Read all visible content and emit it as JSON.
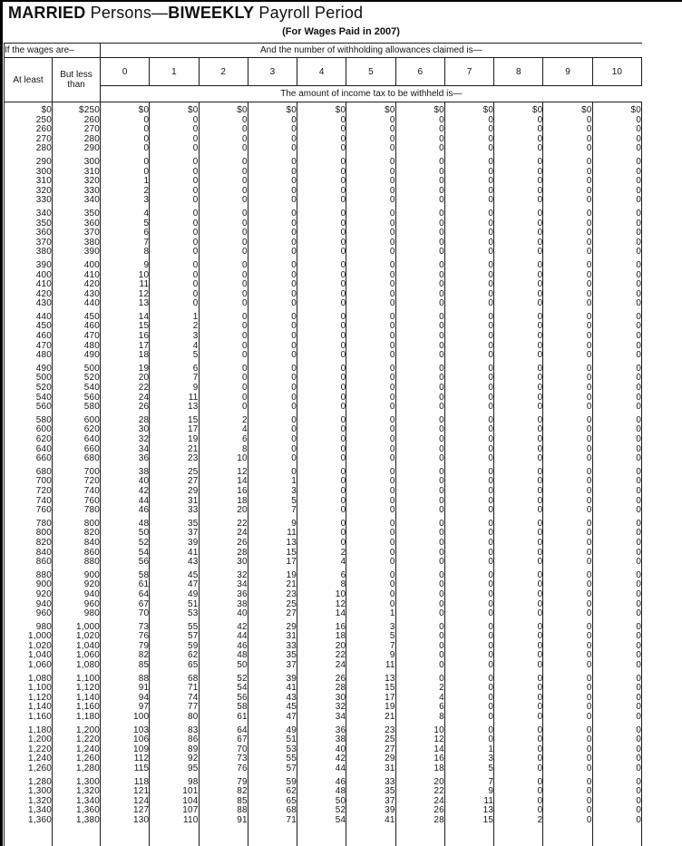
{
  "title": {
    "married": "MARRIED",
    "persons": " Persons—",
    "biweekly": "BIWEEKLY",
    "payroll": " Payroll Period"
  },
  "subtitle": "(For Wages Paid in 2007)",
  "colors": {
    "border": "#1c1c1c",
    "text": "#161616",
    "scan_edge": "#000000",
    "background": "#fefefe"
  },
  "table": {
    "wages_header": "If the wages are–",
    "allowances_header": "And the number of withholding allowances claimed is—",
    "col_at_least": "At least",
    "col_but_less": "But less than",
    "allowance_columns": [
      "0",
      "1",
      "2",
      "3",
      "4",
      "5",
      "6",
      "7",
      "8",
      "9",
      "10"
    ],
    "amount_header": "The amount of income tax to be withheld is—",
    "groups": [
      [
        [
          "$0",
          "$250",
          "$0",
          "$0",
          "$0",
          "$0",
          "$0",
          "$0",
          "$0",
          "$0",
          "$0",
          "$0",
          "$0"
        ],
        [
          "250",
          "260",
          "0",
          "0",
          "0",
          "0",
          "0",
          "0",
          "0",
          "0",
          "0",
          "0",
          "0"
        ],
        [
          "260",
          "270",
          "0",
          "0",
          "0",
          "0",
          "0",
          "0",
          "0",
          "0",
          "0",
          "0",
          "0"
        ],
        [
          "270",
          "280",
          "0",
          "0",
          "0",
          "0",
          "0",
          "0",
          "0",
          "0",
          "0",
          "0",
          "0"
        ],
        [
          "280",
          "290",
          "0",
          "0",
          "0",
          "0",
          "0",
          "0",
          "0",
          "0",
          "0",
          "0",
          "0"
        ]
      ],
      [
        [
          "290",
          "300",
          "0",
          "0",
          "0",
          "0",
          "0",
          "0",
          "0",
          "0",
          "0",
          "0",
          "0"
        ],
        [
          "300",
          "310",
          "0",
          "0",
          "0",
          "0",
          "0",
          "0",
          "0",
          "0",
          "0",
          "0",
          "0"
        ],
        [
          "310",
          "320",
          "1",
          "0",
          "0",
          "0",
          "0",
          "0",
          "0",
          "0",
          "0",
          "0",
          "0"
        ],
        [
          "320",
          "330",
          "2",
          "0",
          "0",
          "0",
          "0",
          "0",
          "0",
          "0",
          "0",
          "0",
          "0"
        ],
        [
          "330",
          "340",
          "3",
          "0",
          "0",
          "0",
          "0",
          "0",
          "0",
          "0",
          "0",
          "0",
          "0"
        ]
      ],
      [
        [
          "340",
          "350",
          "4",
          "0",
          "0",
          "0",
          "0",
          "0",
          "0",
          "0",
          "0",
          "0",
          "0"
        ],
        [
          "350",
          "360",
          "5",
          "0",
          "0",
          "0",
          "0",
          "0",
          "0",
          "0",
          "0",
          "0",
          "0"
        ],
        [
          "360",
          "370",
          "6",
          "0",
          "0",
          "0",
          "0",
          "0",
          "0",
          "0",
          "0",
          "0",
          "0"
        ],
        [
          "370",
          "380",
          "7",
          "0",
          "0",
          "0",
          "0",
          "0",
          "0",
          "0",
          "0",
          "0",
          "0"
        ],
        [
          "380",
          "390",
          "8",
          "0",
          "0",
          "0",
          "0",
          "0",
          "0",
          "0",
          "0",
          "0",
          "0"
        ]
      ],
      [
        [
          "390",
          "400",
          "9",
          "0",
          "0",
          "0",
          "0",
          "0",
          "0",
          "0",
          "0",
          "0",
          "0"
        ],
        [
          "400",
          "410",
          "10",
          "0",
          "0",
          "0",
          "0",
          "0",
          "0",
          "0",
          "0",
          "0",
          "0"
        ],
        [
          "410",
          "420",
          "11",
          "0",
          "0",
          "0",
          "0",
          "0",
          "0",
          "0",
          "0",
          "0",
          "0"
        ],
        [
          "420",
          "430",
          "12",
          "0",
          "0",
          "0",
          "0",
          "0",
          "0",
          "0",
          "0",
          "0",
          "0"
        ],
        [
          "430",
          "440",
          "13",
          "0",
          "0",
          "0",
          "0",
          "0",
          "0",
          "0",
          "0",
          "0",
          "0"
        ]
      ],
      [
        [
          "440",
          "450",
          "14",
          "1",
          "0",
          "0",
          "0",
          "0",
          "0",
          "0",
          "0",
          "0",
          "0"
        ],
        [
          "450",
          "460",
          "15",
          "2",
          "0",
          "0",
          "0",
          "0",
          "0",
          "0",
          "0",
          "0",
          "0"
        ],
        [
          "460",
          "470",
          "16",
          "3",
          "0",
          "0",
          "0",
          "0",
          "0",
          "0",
          "0",
          "0",
          "0"
        ],
        [
          "470",
          "480",
          "17",
          "4",
          "0",
          "0",
          "0",
          "0",
          "0",
          "0",
          "0",
          "0",
          "0"
        ],
        [
          "480",
          "490",
          "18",
          "5",
          "0",
          "0",
          "0",
          "0",
          "0",
          "0",
          "0",
          "0",
          "0"
        ]
      ],
      [
        [
          "490",
          "500",
          "19",
          "6",
          "0",
          "0",
          "0",
          "0",
          "0",
          "0",
          "0",
          "0",
          "0"
        ],
        [
          "500",
          "520",
          "20",
          "7",
          "0",
          "0",
          "0",
          "0",
          "0",
          "0",
          "0",
          "0",
          "0"
        ],
        [
          "520",
          "540",
          "22",
          "9",
          "0",
          "0",
          "0",
          "0",
          "0",
          "0",
          "0",
          "0",
          "0"
        ],
        [
          "540",
          "560",
          "24",
          "11",
          "0",
          "0",
          "0",
          "0",
          "0",
          "0",
          "0",
          "0",
          "0"
        ],
        [
          "560",
          "580",
          "26",
          "13",
          "0",
          "0",
          "0",
          "0",
          "0",
          "0",
          "0",
          "0",
          "0"
        ]
      ],
      [
        [
          "580",
          "600",
          "28",
          "15",
          "2",
          "0",
          "0",
          "0",
          "0",
          "0",
          "0",
          "0",
          "0"
        ],
        [
          "600",
          "620",
          "30",
          "17",
          "4",
          "0",
          "0",
          "0",
          "0",
          "0",
          "0",
          "0",
          "0"
        ],
        [
          "620",
          "640",
          "32",
          "19",
          "6",
          "0",
          "0",
          "0",
          "0",
          "0",
          "0",
          "0",
          "0"
        ],
        [
          "640",
          "660",
          "34",
          "21",
          "8",
          "0",
          "0",
          "0",
          "0",
          "0",
          "0",
          "0",
          "0"
        ],
        [
          "660",
          "680",
          "36",
          "23",
          "10",
          "0",
          "0",
          "0",
          "0",
          "0",
          "0",
          "0",
          "0"
        ]
      ],
      [
        [
          "680",
          "700",
          "38",
          "25",
          "12",
          "0",
          "0",
          "0",
          "0",
          "0",
          "0",
          "0",
          "0"
        ],
        [
          "700",
          "720",
          "40",
          "27",
          "14",
          "1",
          "0",
          "0",
          "0",
          "0",
          "0",
          "0",
          "0"
        ],
        [
          "720",
          "740",
          "42",
          "29",
          "16",
          "3",
          "0",
          "0",
          "0",
          "0",
          "0",
          "0",
          "0"
        ],
        [
          "740",
          "760",
          "44",
          "31",
          "18",
          "5",
          "0",
          "0",
          "0",
          "0",
          "0",
          "0",
          "0"
        ],
        [
          "760",
          "780",
          "46",
          "33",
          "20",
          "7",
          "0",
          "0",
          "0",
          "0",
          "0",
          "0",
          "0"
        ]
      ],
      [
        [
          "780",
          "800",
          "48",
          "35",
          "22",
          "9",
          "0",
          "0",
          "0",
          "0",
          "0",
          "0",
          "0"
        ],
        [
          "800",
          "820",
          "50",
          "37",
          "24",
          "11",
          "0",
          "0",
          "0",
          "0",
          "0",
          "0",
          "0"
        ],
        [
          "820",
          "840",
          "52",
          "39",
          "26",
          "13",
          "0",
          "0",
          "0",
          "0",
          "0",
          "0",
          "0"
        ],
        [
          "840",
          "860",
          "54",
          "41",
          "28",
          "15",
          "2",
          "0",
          "0",
          "0",
          "0",
          "0",
          "0"
        ],
        [
          "860",
          "880",
          "56",
          "43",
          "30",
          "17",
          "4",
          "0",
          "0",
          "0",
          "0",
          "0",
          "0"
        ]
      ],
      [
        [
          "880",
          "900",
          "58",
          "45",
          "32",
          "19",
          "6",
          "0",
          "0",
          "0",
          "0",
          "0",
          "0"
        ],
        [
          "900",
          "920",
          "61",
          "47",
          "34",
          "21",
          "8",
          "0",
          "0",
          "0",
          "0",
          "0",
          "0"
        ],
        [
          "920",
          "940",
          "64",
          "49",
          "36",
          "23",
          "10",
          "0",
          "0",
          "0",
          "0",
          "0",
          "0"
        ],
        [
          "940",
          "960",
          "67",
          "51",
          "38",
          "25",
          "12",
          "0",
          "0",
          "0",
          "0",
          "0",
          "0"
        ],
        [
          "960",
          "980",
          "70",
          "53",
          "40",
          "27",
          "14",
          "1",
          "0",
          "0",
          "0",
          "0",
          "0"
        ]
      ],
      [
        [
          "980",
          "1,000",
          "73",
          "55",
          "42",
          "29",
          "16",
          "3",
          "0",
          "0",
          "0",
          "0",
          "0"
        ],
        [
          "1,000",
          "1,020",
          "76",
          "57",
          "44",
          "31",
          "18",
          "5",
          "0",
          "0",
          "0",
          "0",
          "0"
        ],
        [
          "1,020",
          "1,040",
          "79",
          "59",
          "46",
          "33",
          "20",
          "7",
          "0",
          "0",
          "0",
          "0",
          "0"
        ],
        [
          "1,040",
          "1,060",
          "82",
          "62",
          "48",
          "35",
          "22",
          "9",
          "0",
          "0",
          "0",
          "0",
          "0"
        ],
        [
          "1,060",
          "1,080",
          "85",
          "65",
          "50",
          "37",
          "24",
          "11",
          "0",
          "0",
          "0",
          "0",
          "0"
        ]
      ],
      [
        [
          "1,080",
          "1,100",
          "88",
          "68",
          "52",
          "39",
          "26",
          "13",
          "0",
          "0",
          "0",
          "0",
          "0"
        ],
        [
          "1,100",
          "1,120",
          "91",
          "71",
          "54",
          "41",
          "28",
          "15",
          "2",
          "0",
          "0",
          "0",
          "0"
        ],
        [
          "1,120",
          "1,140",
          "94",
          "74",
          "56",
          "43",
          "30",
          "17",
          "4",
          "0",
          "0",
          "0",
          "0"
        ],
        [
          "1,140",
          "1,160",
          "97",
          "77",
          "58",
          "45",
          "32",
          "19",
          "6",
          "0",
          "0",
          "0",
          "0"
        ],
        [
          "1,160",
          "1,180",
          "100",
          "80",
          "61",
          "47",
          "34",
          "21",
          "8",
          "0",
          "0",
          "0",
          "0"
        ]
      ],
      [
        [
          "1,180",
          "1,200",
          "103",
          "83",
          "64",
          "49",
          "36",
          "23",
          "10",
          "0",
          "0",
          "0",
          "0"
        ],
        [
          "1,200",
          "1,220",
          "106",
          "86",
          "67",
          "51",
          "38",
          "25",
          "12",
          "0",
          "0",
          "0",
          "0"
        ],
        [
          "1,220",
          "1,240",
          "109",
          "89",
          "70",
          "53",
          "40",
          "27",
          "14",
          "1",
          "0",
          "0",
          "0"
        ],
        [
          "1,240",
          "1,260",
          "112",
          "92",
          "73",
          "55",
          "42",
          "29",
          "16",
          "3",
          "0",
          "0",
          "0"
        ],
        [
          "1,260",
          "1,280",
          "115",
          "95",
          "76",
          "57",
          "44",
          "31",
          "18",
          "5",
          "0",
          "0",
          "0"
        ]
      ],
      [
        [
          "1,280",
          "1,300",
          "118",
          "98",
          "79",
          "59",
          "46",
          "33",
          "20",
          "7",
          "0",
          "0",
          "0"
        ],
        [
          "1,300",
          "1,320",
          "121",
          "101",
          "82",
          "62",
          "48",
          "35",
          "22",
          "9",
          "0",
          "0",
          "0"
        ],
        [
          "1,320",
          "1,340",
          "124",
          "104",
          "85",
          "65",
          "50",
          "37",
          "24",
          "11",
          "0",
          "0",
          "0"
        ],
        [
          "1,340",
          "1,360",
          "127",
          "107",
          "88",
          "68",
          "52",
          "39",
          "26",
          "13",
          "0",
          "0",
          "0"
        ],
        [
          "1,360",
          "1,380",
          "130",
          "110",
          "91",
          "71",
          "54",
          "41",
          "28",
          "15",
          "2",
          "0",
          "0"
        ]
      ]
    ]
  }
}
